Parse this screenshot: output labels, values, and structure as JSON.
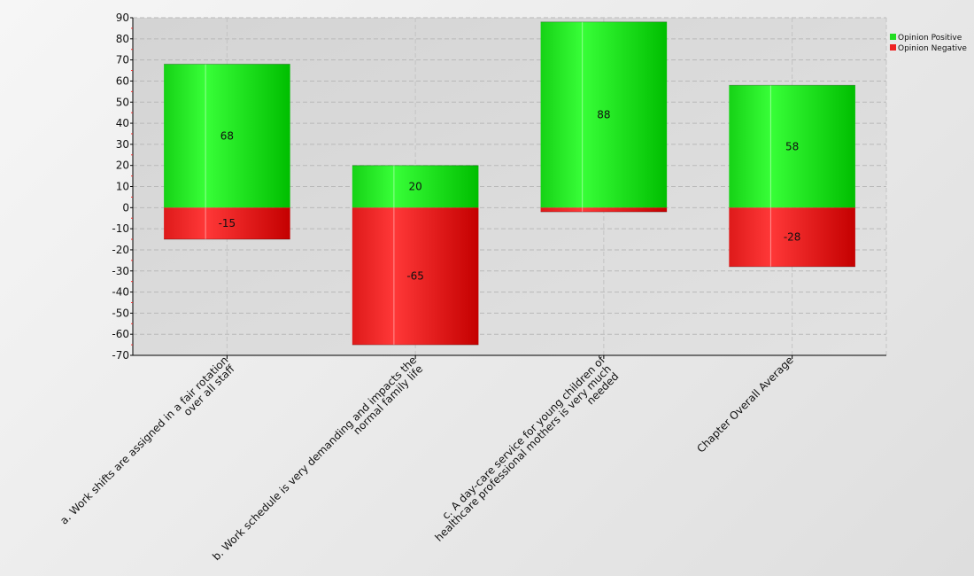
{
  "chart_data": {
    "type": "bar",
    "stacked": true,
    "categories": [
      [
        "a. Work shifts are assigned in a fair rotation",
        "over all staff"
      ],
      [
        "b. Work schedule is very demanding and impacts the",
        "normal family life"
      ],
      [
        "c. A day-care service for young children of",
        "healthcare professional mothers is very much",
        "needed"
      ],
      [
        "Chapter Overall Average"
      ]
    ],
    "series": [
      {
        "name": "Opinion Positive",
        "values": [
          68,
          20,
          88,
          58
        ],
        "color": "#22dd22"
      },
      {
        "name": "Opinion Negative",
        "values": [
          -15,
          -65,
          -2,
          -28
        ],
        "color": "#ee2222"
      }
    ],
    "value_labels": [
      [
        "68",
        "20",
        "88",
        "58"
      ],
      [
        "-15",
        "-65",
        "",
        "-28"
      ]
    ],
    "ylim": [
      -70,
      90
    ],
    "yticks": [
      "90",
      "80",
      "70",
      "60",
      "50",
      "40",
      "30",
      "20",
      "10",
      "0",
      "-10",
      "-20",
      "-30",
      "-40",
      "-50",
      "-60",
      "-70"
    ],
    "grid": true,
    "legend_position": "top-right",
    "title": "",
    "xlabel": "",
    "ylabel": ""
  }
}
